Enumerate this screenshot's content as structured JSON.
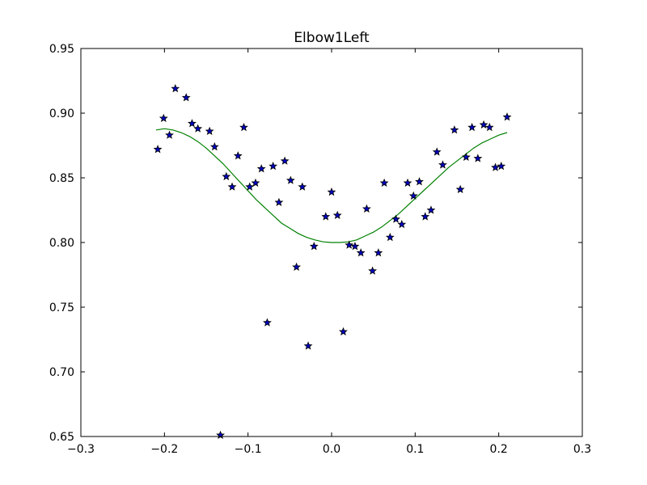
{
  "chart_data": {
    "type": "scatter",
    "title": "Elbow1Left",
    "xlabel": "",
    "ylabel": "",
    "xlim": [
      -0.3,
      0.3
    ],
    "ylim": [
      0.65,
      0.95
    ],
    "xticks": [
      -0.3,
      -0.2,
      -0.1,
      0.0,
      0.1,
      0.2,
      0.3
    ],
    "xtick_labels": [
      "−0.3",
      "−0.2",
      "−0.1",
      "0.0",
      "0.1",
      "0.2",
      "0.3"
    ],
    "yticks": [
      0.65,
      0.7,
      0.75,
      0.8,
      0.85,
      0.9,
      0.95
    ],
    "ytick_labels": [
      "0.65",
      "0.70",
      "0.75",
      "0.80",
      "0.85",
      "0.90",
      "0.95"
    ],
    "grid": false,
    "series": [
      {
        "kind": "scatter",
        "marker": "star",
        "color": "#0000bf",
        "edge_color": "#000000",
        "points": [
          [
            -0.208,
            0.872
          ],
          [
            -0.201,
            0.896
          ],
          [
            -0.194,
            0.883
          ],
          [
            -0.187,
            0.919
          ],
          [
            -0.174,
            0.912
          ],
          [
            -0.167,
            0.892
          ],
          [
            -0.16,
            0.888
          ],
          [
            -0.146,
            0.886
          ],
          [
            -0.14,
            0.874
          ],
          [
            -0.126,
            0.851
          ],
          [
            -0.119,
            0.843
          ],
          [
            -0.112,
            0.867
          ],
          [
            -0.105,
            0.889
          ],
          [
            -0.098,
            0.843
          ],
          [
            -0.091,
            0.846
          ],
          [
            -0.084,
            0.857
          ],
          [
            -0.07,
            0.859
          ],
          [
            -0.063,
            0.831
          ],
          [
            -0.056,
            0.863
          ],
          [
            -0.049,
            0.848
          ],
          [
            -0.042,
            0.781
          ],
          [
            -0.035,
            0.843
          ],
          [
            -0.028,
            0.72
          ],
          [
            -0.021,
            0.797
          ],
          [
            -0.077,
            0.738
          ],
          [
            -0.133,
            0.651
          ],
          [
            -0.007,
            0.82
          ],
          [
            0.0,
            0.839
          ],
          [
            0.007,
            0.821
          ],
          [
            0.014,
            0.731
          ],
          [
            0.021,
            0.798
          ],
          [
            0.028,
            0.797
          ],
          [
            0.035,
            0.792
          ],
          [
            0.042,
            0.826
          ],
          [
            0.049,
            0.778
          ],
          [
            0.056,
            0.792
          ],
          [
            0.063,
            0.846
          ],
          [
            0.07,
            0.804
          ],
          [
            0.077,
            0.818
          ],
          [
            0.084,
            0.814
          ],
          [
            0.091,
            0.846
          ],
          [
            0.098,
            0.836
          ],
          [
            0.105,
            0.847
          ],
          [
            0.112,
            0.82
          ],
          [
            0.119,
            0.825
          ],
          [
            0.126,
            0.87
          ],
          [
            0.133,
            0.86
          ],
          [
            0.147,
            0.887
          ],
          [
            0.154,
            0.841
          ],
          [
            0.161,
            0.866
          ],
          [
            0.168,
            0.889
          ],
          [
            0.175,
            0.865
          ],
          [
            0.182,
            0.891
          ],
          [
            0.189,
            0.889
          ],
          [
            0.196,
            0.858
          ],
          [
            0.203,
            0.859
          ],
          [
            0.21,
            0.897
          ]
        ]
      },
      {
        "kind": "line",
        "color": "#008000",
        "points": [
          [
            -0.21,
            0.887
          ],
          [
            -0.2,
            0.888
          ],
          [
            -0.19,
            0.887
          ],
          [
            -0.18,
            0.885
          ],
          [
            -0.17,
            0.882
          ],
          [
            -0.16,
            0.878
          ],
          [
            -0.15,
            0.873
          ],
          [
            -0.14,
            0.867
          ],
          [
            -0.13,
            0.861
          ],
          [
            -0.12,
            0.854
          ],
          [
            -0.11,
            0.847
          ],
          [
            -0.1,
            0.84
          ],
          [
            -0.09,
            0.833
          ],
          [
            -0.08,
            0.827
          ],
          [
            -0.07,
            0.821
          ],
          [
            -0.06,
            0.815
          ],
          [
            -0.05,
            0.811
          ],
          [
            -0.04,
            0.807
          ],
          [
            -0.03,
            0.804
          ],
          [
            -0.02,
            0.802
          ],
          [
            -0.01,
            0.8005
          ],
          [
            0.0,
            0.8
          ],
          [
            0.01,
            0.8
          ],
          [
            0.02,
            0.8005
          ],
          [
            0.03,
            0.802
          ],
          [
            0.04,
            0.805
          ],
          [
            0.05,
            0.808
          ],
          [
            0.06,
            0.812
          ],
          [
            0.07,
            0.817
          ],
          [
            0.08,
            0.822
          ],
          [
            0.09,
            0.828
          ],
          [
            0.1,
            0.834
          ],
          [
            0.11,
            0.84
          ],
          [
            0.12,
            0.846
          ],
          [
            0.13,
            0.852
          ],
          [
            0.14,
            0.858
          ],
          [
            0.15,
            0.863
          ],
          [
            0.16,
            0.868
          ],
          [
            0.17,
            0.873
          ],
          [
            0.18,
            0.877
          ],
          [
            0.19,
            0.88
          ],
          [
            0.2,
            0.883
          ],
          [
            0.21,
            0.885
          ]
        ]
      }
    ]
  }
}
